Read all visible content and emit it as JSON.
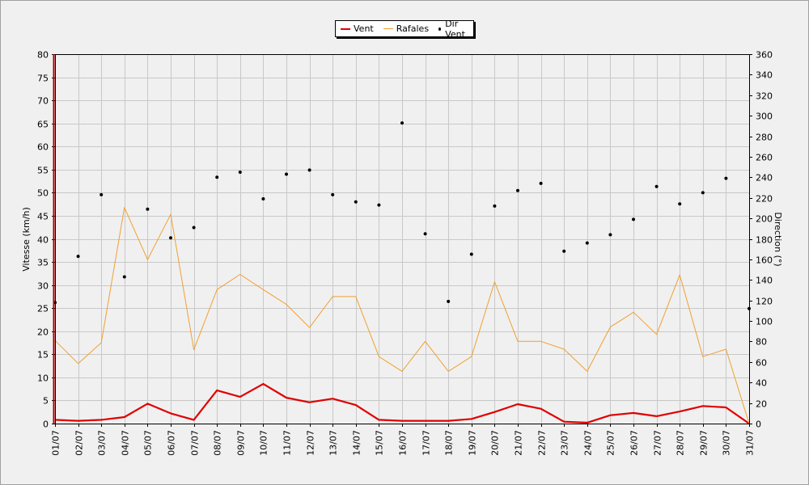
{
  "chart_data": {
    "type": "line",
    "categories": [
      "01/07",
      "02/07",
      "03/07",
      "04/07",
      "05/07",
      "06/07",
      "07/07",
      "08/07",
      "09/07",
      "10/07",
      "11/07",
      "12/07",
      "13/07",
      "14/07",
      "15/07",
      "16/07",
      "17/07",
      "18/07",
      "19/07",
      "20/07",
      "21/07",
      "22/07",
      "23/07",
      "24/07",
      "25/07",
      "26/07",
      "27/07",
      "28/07",
      "29/07",
      "30/07",
      "31/07"
    ],
    "ylabel": "Vitesse (km/h)",
    "ylim": [
      0,
      80
    ],
    "y_ticks": [
      0,
      5,
      10,
      15,
      20,
      25,
      30,
      35,
      40,
      45,
      50,
      55,
      60,
      65,
      70,
      75,
      80
    ],
    "y2label": "Direction (°)",
    "y2lim": [
      0,
      360
    ],
    "y2_ticks": [
      0,
      20,
      40,
      60,
      80,
      100,
      120,
      140,
      160,
      180,
      200,
      220,
      240,
      260,
      280,
      300,
      320,
      340,
      360
    ],
    "grid": true,
    "legend_placement": "top-center",
    "series": [
      {
        "name": "Vent",
        "axis": "left",
        "style": "line",
        "color": "#e00000",
        "values": [
          0.8,
          0.6,
          0.8,
          1.4,
          4.3,
          2.2,
          0.8,
          7.2,
          5.8,
          8.6,
          5.6,
          4.6,
          5.4,
          4.0,
          0.8,
          0.6,
          0.6,
          0.6,
          1.0,
          2.5,
          4.2,
          3.2,
          0.4,
          0.2,
          1.8,
          2.3,
          1.6,
          2.6,
          3.8,
          3.5,
          0
        ]
      },
      {
        "name": "Rafales",
        "axis": "left",
        "style": "line",
        "color": "#f0a030",
        "values": [
          18,
          13,
          17.5,
          46.8,
          35.5,
          45.3,
          16,
          29,
          32.3,
          29,
          25.8,
          20.8,
          27.5,
          27.5,
          14.5,
          11.3,
          17.8,
          11.3,
          14.5,
          30.7,
          17.8,
          17.8,
          16.1,
          11.3,
          20.9,
          24.1,
          19.3,
          32.2,
          14.5,
          16.1,
          0
        ]
      },
      {
        "name": "Dir Vent",
        "axis": "right",
        "style": "points",
        "color": "#000000",
        "values": [
          118,
          163,
          223,
          143,
          209,
          181,
          191,
          240,
          245,
          219,
          243,
          247,
          223,
          216,
          213,
          293,
          185,
          119,
          165,
          212,
          227,
          234,
          168,
          176,
          184,
          199,
          231,
          214,
          225,
          239,
          112
        ]
      }
    ]
  }
}
